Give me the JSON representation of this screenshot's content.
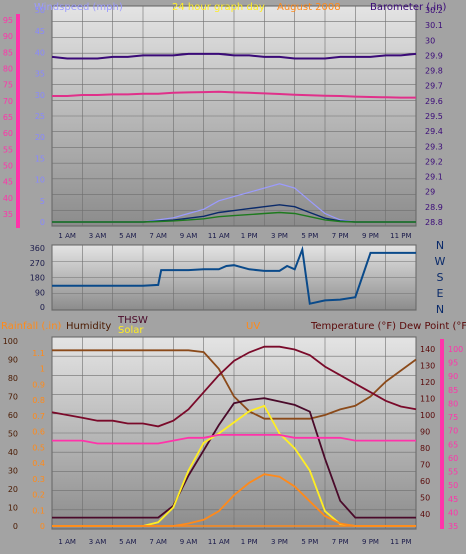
{
  "colors": {
    "frame": "#9c9c9c",
    "plot_top": "#e6e6e6",
    "plot_bottom": "#8e8e8e",
    "grid": "#6f6f6f",
    "wind_speed": "#9b9bff",
    "wind_gust": "#0a2a6a",
    "wind_avg": "#1e7a1e",
    "barometer": "#3a0a78",
    "pink_line": "#e0308a",
    "wind_dir": "#0a4a8a",
    "rainfall": "#ff8a1a",
    "humidity": "#8b4a1a",
    "thsw": "#4a0a2a",
    "solar": "#ffee22",
    "uv": "#ff8a1a",
    "temperature": "#7a0a2a",
    "dew_point": "#ff33aa",
    "temperature_alt": "#993366",
    "dark_red": "#5a0a0a"
  },
  "panel1": {
    "title_left": "Windspeed (mph)",
    "title_center": "24 hour graph day",
    "title_right_date": "August 2008",
    "title_right": "Barometer (.in)",
    "left_ticks": [
      "95",
      "90",
      "85",
      "80",
      "75",
      "70",
      "65",
      "60",
      "55",
      "50",
      "45",
      "40",
      "35"
    ],
    "inner_ticks": [
      "50",
      "45",
      "40",
      "35",
      "30",
      "25",
      "20",
      "15",
      "10",
      "5",
      "0"
    ],
    "right_ticks": [
      "30.2",
      "30.1",
      "30",
      "29.9",
      "29.8",
      "29.7",
      "29.6",
      "29.5",
      "29.4",
      "29.3",
      "29.2",
      "29.1",
      "29",
      "28.9",
      "28.8"
    ]
  },
  "panel2": {
    "left_ticks": [
      "360",
      "270",
      "180",
      "90",
      "0"
    ],
    "compass": [
      "N",
      "W",
      "S",
      "E",
      "N"
    ]
  },
  "panel3": {
    "label_rainfall": "Rainfall (.in)",
    "label_humidity": "Humidity",
    "label_thsw": "THSW",
    "label_solar": "Solar",
    "label_uv": "UV",
    "label_temp": "Temperature (°F) Dew Point (°F)",
    "ticks_a": [
      "100",
      "90",
      "80",
      "70",
      "60",
      "50",
      "40",
      "30",
      "20",
      "10",
      "0"
    ],
    "ticks_b": [
      "1.1",
      "1",
      "0.9",
      "0.8",
      "0.7",
      "0.6",
      "0.5",
      "0.4",
      "0.3",
      "0.2",
      "0.1",
      "0"
    ],
    "ticks_c": [
      "140",
      "130",
      "120",
      "110",
      "100",
      "90",
      "80",
      "70",
      "60",
      "50",
      "40"
    ],
    "ticks_d": [
      "100",
      "95",
      "90",
      "85",
      "80",
      "75",
      "70",
      "65",
      "60",
      "55",
      "50",
      "45",
      "40",
      "35"
    ]
  },
  "x_labels": [
    "1 AM",
    "3 AM",
    "5 AM",
    "7 AM",
    "9 AM",
    "11 AM",
    "1 PM",
    "3 PM",
    "5 PM",
    "7 PM",
    "9 PM",
    "11 PM"
  ],
  "chart_data": [
    {
      "type": "line",
      "title": "24 hour graph day",
      "x": [
        0,
        1,
        2,
        3,
        4,
        5,
        6,
        7,
        8,
        9,
        10,
        11,
        12,
        13,
        14,
        15,
        16,
        17,
        18,
        19,
        20,
        21,
        22,
        23,
        24
      ],
      "series": [
        {
          "name": "Barometer (.in)",
          "values": [
            29.89,
            29.88,
            29.88,
            29.88,
            29.89,
            29.89,
            29.9,
            29.9,
            29.9,
            29.91,
            29.91,
            29.91,
            29.9,
            29.9,
            29.89,
            29.89,
            29.88,
            29.88,
            29.88,
            29.89,
            29.89,
            29.89,
            29.9,
            29.9,
            29.91
          ]
        },
        {
          "name": "",
          "values": [
            71.5,
            71.5,
            71.8,
            71.8,
            72.0,
            72.0,
            72.2,
            72.2,
            72.5,
            72.6,
            72.7,
            72.8,
            72.6,
            72.5,
            72.3,
            72.1,
            71.9,
            71.7,
            71.6,
            71.5,
            71.3,
            71.2,
            71.1,
            71.0,
            71.0
          ]
        },
        {
          "name": "Windspeed (mph)",
          "values": [
            0,
            0,
            0,
            0,
            0,
            0,
            0,
            0.5,
            1,
            2,
            3,
            5,
            6,
            7,
            8,
            9,
            8,
            5,
            2,
            0.5,
            0,
            0,
            0,
            0,
            0
          ]
        }
      ]
    },
    {
      "type": "line",
      "x": [
        0,
        1,
        2,
        3,
        4,
        5,
        6,
        7,
        7.2,
        8,
        9,
        10,
        11,
        11.5,
        12,
        13,
        14,
        15,
        15.5,
        16,
        16.5,
        17,
        18,
        19,
        20,
        21,
        22,
        23,
        24
      ],
      "series": [
        {
          "name": "Wind direction",
          "values": [
            130,
            130,
            130,
            130,
            130,
            130,
            130,
            135,
            225,
            225,
            225,
            230,
            230,
            250,
            255,
            230,
            220,
            220,
            250,
            230,
            350,
            20,
            40,
            45,
            60,
            330,
            330,
            330,
            330
          ]
        }
      ]
    },
    {
      "type": "line",
      "x": [
        0,
        1,
        2,
        3,
        4,
        5,
        6,
        7,
        8,
        9,
        10,
        11,
        12,
        13,
        14,
        15,
        16,
        17,
        18,
        19,
        20,
        21,
        22,
        23,
        24
      ],
      "series": [
        {
          "name": "Humidity",
          "values": [
            95,
            95,
            95,
            95,
            95,
            95,
            95,
            95,
            95,
            95,
            94,
            85,
            70,
            62,
            58,
            58,
            58,
            58,
            60,
            63,
            65,
            70,
            78,
            84,
            90
          ]
        },
        {
          "name": "THSW",
          "values": [
            35,
            35,
            35,
            35,
            35,
            35,
            35,
            35,
            42,
            60,
            75,
            90,
            103,
            105,
            106,
            104,
            102,
            98,
            70,
            45,
            35,
            35,
            35,
            35,
            35
          ]
        },
        {
          "name": "Solar",
          "values": [
            0,
            0,
            0,
            0,
            0,
            0,
            0,
            20,
            100,
            300,
            450,
            500,
            560,
            620,
            650,
            500,
            420,
            300,
            80,
            10,
            0,
            0,
            0,
            0,
            0
          ]
        },
        {
          "name": "UV",
          "values": [
            0,
            0,
            0,
            0,
            0,
            0,
            0,
            0,
            0,
            0.2,
            0.5,
            1.2,
            2.5,
            3.5,
            4.2,
            4.0,
            3.2,
            2.0,
            0.8,
            0.2,
            0,
            0,
            0,
            0,
            0
          ]
        },
        {
          "name": "Temperature (°F)",
          "values": [
            75,
            74,
            73,
            72,
            72,
            71,
            71,
            70,
            72,
            76,
            82,
            88,
            93,
            96,
            98,
            98,
            97,
            95,
            91,
            88,
            85,
            82,
            79,
            77,
            76
          ]
        },
        {
          "name": "Dew Point (°F)",
          "values": [
            65,
            65,
            65,
            64,
            64,
            64,
            64,
            64,
            65,
            66,
            66,
            67,
            67,
            67,
            67,
            67,
            66,
            66,
            66,
            66,
            65,
            65,
            65,
            65,
            65
          ]
        },
        {
          "name": "Rainfall (.in)",
          "values": [
            0,
            0,
            0,
            0,
            0,
            0,
            0,
            0,
            0,
            0,
            0,
            0,
            0,
            0,
            0,
            0,
            0,
            0,
            0,
            0,
            0,
            0,
            0,
            0,
            0
          ]
        }
      ]
    }
  ]
}
